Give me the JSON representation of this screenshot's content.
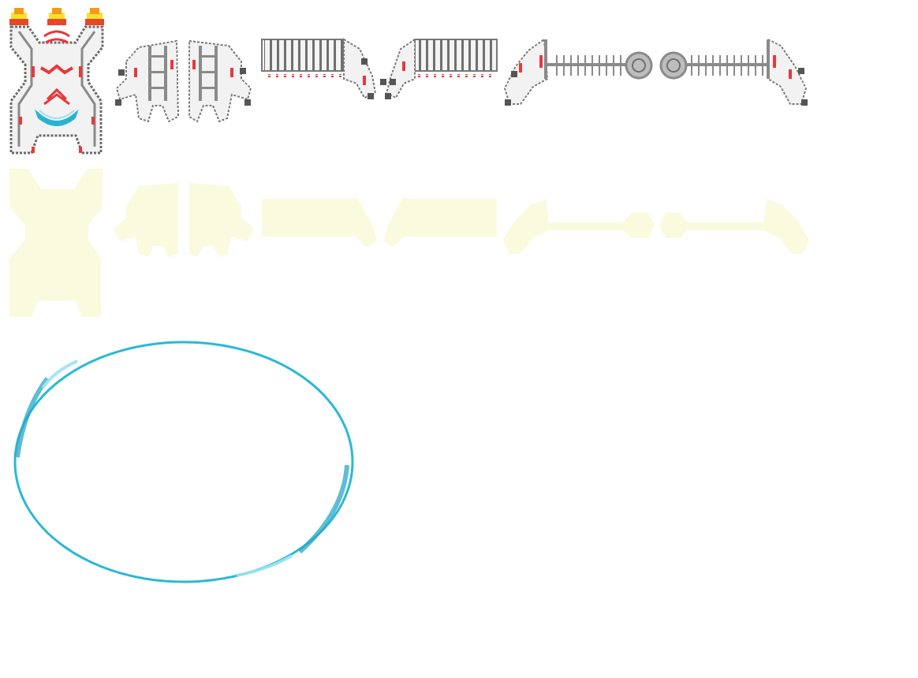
{
  "sheet": {
    "background": "#ffffff",
    "sprites": [
      {
        "name": "boss-core-sprite",
        "kind": "core"
      },
      {
        "name": "left-arm-segment-sprite",
        "kind": "arm-segment"
      },
      {
        "name": "right-arm-segment-sprite",
        "kind": "arm-segment"
      },
      {
        "name": "left-shoulder-comb-sprite",
        "kind": "comb"
      },
      {
        "name": "right-shoulder-comb-sprite",
        "kind": "comb"
      },
      {
        "name": "left-spine-cannon-sprite",
        "kind": "spine"
      },
      {
        "name": "right-spine-cannon-sprite",
        "kind": "spine"
      }
    ],
    "silhouette_row": {
      "color": "#fafadf",
      "count": 7
    },
    "shield_ring": {
      "color": "#2ab8d6",
      "highlight": "#9fe2ef"
    }
  },
  "palette": {
    "outline": "#6b6b6b",
    "body": "#d8d8d8",
    "accent_red": "#e8393a",
    "accent_cyan": "#2ab2d3",
    "flame_yellow": "#f8e02a",
    "flame_orange": "#f39a1e",
    "flame_red": "#e8462a",
    "silhouette": "#fafadf"
  }
}
